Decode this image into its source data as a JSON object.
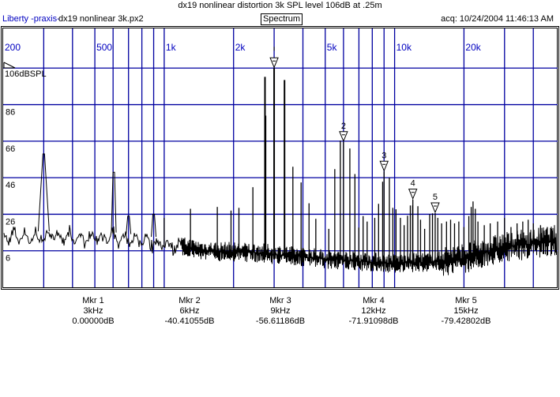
{
  "header": {
    "title": "dx19 nonlinear distortion 3k SPL level 106dB at .25m",
    "brand": "Liberty -praxis-",
    "file": "dx19 nonlinear 3k.px2",
    "mode": "Spectrum",
    "acq": "acq: 10/24/2004 11:46:13 AM"
  },
  "colors": {
    "grid": "#0000a0",
    "trace": "#000000",
    "axis_label": "#0000c0"
  },
  "chart_data": {
    "type": "line",
    "title": "dx19 nonlinear distortion 3k SPL level 106dB at .25m",
    "xscale": "log",
    "xlim": [
      200,
      51000
    ],
    "ylim": [
      -14,
      126
    ],
    "ref_label": "106dBSPL",
    "x_tick_labels": [
      {
        "f": 200,
        "label": "200"
      },
      {
        "f": 500,
        "label": "500"
      },
      {
        "f": 1000,
        "label": "1k"
      },
      {
        "f": 2000,
        "label": "2k"
      },
      {
        "f": 5000,
        "label": "5k"
      },
      {
        "f": 10000,
        "label": "10k"
      },
      {
        "f": 20000,
        "label": "20k"
      }
    ],
    "x_grid": [
      300,
      400,
      500,
      600,
      700,
      800,
      900,
      1000,
      2000,
      3000,
      4000,
      5000,
      6000,
      7000,
      8000,
      9000,
      10000,
      20000,
      30000,
      40000
    ],
    "y_grid": [
      106,
      86,
      66,
      46,
      26,
      6
    ],
    "y_tick_labels": [
      "86",
      "66",
      "46",
      "26",
      "6"
    ],
    "noise_floor": [
      [
        200,
        14
      ],
      [
        600,
        13
      ],
      [
        1000,
        10
      ],
      [
        1500,
        6
      ],
      [
        2500,
        5
      ],
      [
        5000,
        1.5
      ],
      [
        10000,
        -1
      ],
      [
        15000,
        0
      ],
      [
        20000,
        2
      ],
      [
        25000,
        5
      ],
      [
        30000,
        8
      ],
      [
        40000,
        10
      ],
      [
        51000,
        12
      ]
    ],
    "peaks": [
      [
        300,
        59
      ],
      [
        604,
        49
      ],
      [
        700,
        25
      ],
      [
        900,
        26
      ],
      [
        1000,
        24
      ],
      [
        1300,
        29
      ],
      [
        1700,
        30
      ],
      [
        1950,
        28
      ],
      [
        2110,
        29.5
      ],
      [
        2426,
        40.8
      ],
      [
        2738,
        101.2
      ],
      [
        2760,
        80
      ],
      [
        3000,
        106
      ],
      [
        3328,
        99.5
      ],
      [
        3618,
        52
      ],
      [
        3928,
        43.4
      ],
      [
        4252,
        32
      ],
      [
        4550,
        23.5
      ],
      [
        5180,
        18
      ],
      [
        5500,
        50.7
      ],
      [
        5814,
        66.3
      ],
      [
        6000,
        65.6
      ],
      [
        6394,
        62
      ],
      [
        6726,
        48
      ],
      [
        6996,
        18.7
      ],
      [
        7300,
        25
      ],
      [
        7600,
        22
      ],
      [
        8200,
        24
      ],
      [
        8520,
        31.7
      ],
      [
        8872,
        43.8
      ],
      [
        9000,
        49.4
      ],
      [
        9490,
        46
      ],
      [
        9826,
        29.5
      ],
      [
        10140,
        28.7
      ],
      [
        10600,
        24
      ],
      [
        11000,
        20
      ],
      [
        11380,
        25.2
      ],
      [
        11700,
        30.8
      ],
      [
        11970,
        30.8
      ],
      [
        12000,
        34.1
      ],
      [
        12620,
        30.4
      ],
      [
        12960,
        23
      ],
      [
        13500,
        18
      ],
      [
        14200,
        26
      ],
      [
        14600,
        26.5
      ],
      [
        15000,
        26.6
      ],
      [
        15400,
        24
      ],
      [
        16000,
        21
      ],
      [
        16800,
        22
      ],
      [
        17500,
        23
      ],
      [
        18200,
        21
      ],
      [
        19000,
        22
      ],
      [
        20000,
        19
      ],
      [
        21000,
        25
      ],
      [
        21500,
        30
      ],
      [
        21900,
        33
      ],
      [
        22400,
        29
      ],
      [
        23000,
        22
      ],
      [
        24500,
        20
      ],
      [
        26000,
        21
      ],
      [
        28000,
        22
      ],
      [
        30000,
        24
      ],
      [
        32000,
        19
      ],
      [
        34000,
        21
      ],
      [
        36000,
        22
      ],
      [
        38000,
        23
      ],
      [
        40000,
        21
      ],
      [
        43000,
        20
      ],
      [
        46000,
        19
      ],
      [
        48000,
        18
      ]
    ],
    "markers": [
      {
        "label": "Mkr 1",
        "num": "1",
        "freq": "3kHz",
        "f": 3000,
        "db": 106,
        "value": "0.00000dB"
      },
      {
        "label": "Mkr 2",
        "num": "2",
        "freq": "6kHz",
        "f": 6000,
        "db": 65.6,
        "value": "-40.41055dB"
      },
      {
        "label": "Mkr 3",
        "num": "3",
        "freq": "9kHz",
        "f": 9000,
        "db": 49.4,
        "value": "-56.61186dB"
      },
      {
        "label": "Mkr 4",
        "num": "4",
        "freq": "12kHz",
        "f": 12000,
        "db": 34.1,
        "value": "-71.91098dB"
      },
      {
        "label": "Mkr 5",
        "num": "5",
        "freq": "15kHz",
        "f": 15000,
        "db": 26.6,
        "value": "-79.42802dB"
      }
    ]
  }
}
